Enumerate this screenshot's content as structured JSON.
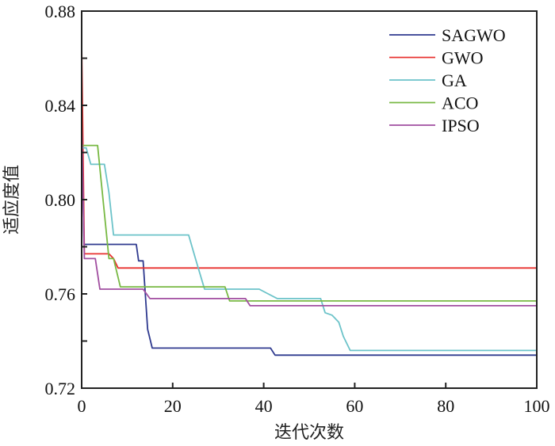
{
  "chart_data": {
    "type": "line",
    "title": "",
    "xlabel": "迭代次数",
    "ylabel": "适应度值",
    "xlim": [
      0,
      100
    ],
    "ylim": [
      0.72,
      0.88
    ],
    "xticks": [
      0,
      20,
      40,
      60,
      80,
      100
    ],
    "xtick_labels": [
      "0",
      "20",
      "40",
      "60",
      "80",
      "100"
    ],
    "yticks": [
      0.72,
      0.76,
      0.8,
      0.84,
      0.88
    ],
    "ytick_labels": [
      "0.72",
      "0.76",
      "0.80",
      "0.84",
      "0.88"
    ],
    "yminor_ticks": [
      0.74,
      0.78,
      0.82,
      0.86
    ],
    "grid": false,
    "legend_position": "top-right",
    "series": [
      {
        "name": "SAGWO",
        "color": "#2f3a8f",
        "x": [
          0,
          0.5,
          12,
          12.5,
          13.5,
          14.5,
          15.5,
          41.5,
          42.5,
          100
        ],
        "y": [
          0.848,
          0.781,
          0.781,
          0.774,
          0.774,
          0.745,
          0.737,
          0.737,
          0.734,
          0.734
        ]
      },
      {
        "name": "GWO",
        "color": "#e8312f",
        "x": [
          0,
          0.6,
          6,
          7,
          8,
          100
        ],
        "y": [
          0.866,
          0.777,
          0.777,
          0.775,
          0.771,
          0.771
        ]
      },
      {
        "name": "GA",
        "color": "#6cc3c9",
        "x": [
          0,
          1,
          2,
          5,
          6,
          7,
          23.5,
          25,
          27,
          39,
          41,
          43,
          52.5,
          53.5,
          55,
          56.5,
          57.5,
          59,
          100
        ],
        "y": [
          0.822,
          0.822,
          0.815,
          0.815,
          0.803,
          0.785,
          0.785,
          0.775,
          0.762,
          0.762,
          0.76,
          0.758,
          0.758,
          0.752,
          0.751,
          0.748,
          0.742,
          0.736,
          0.736
        ]
      },
      {
        "name": "ACO",
        "color": "#78b943",
        "x": [
          0,
          3.5,
          6,
          7,
          8.5,
          31.5,
          32.5,
          100
        ],
        "y": [
          0.823,
          0.823,
          0.775,
          0.775,
          0.763,
          0.763,
          0.757,
          0.757
        ]
      },
      {
        "name": "IPSO",
        "color": "#a14ea0",
        "x": [
          0,
          0.6,
          3,
          4,
          13.5,
          15,
          36,
          37,
          100
        ],
        "y": [
          0.833,
          0.775,
          0.775,
          0.762,
          0.762,
          0.758,
          0.758,
          0.755,
          0.755
        ]
      }
    ]
  }
}
